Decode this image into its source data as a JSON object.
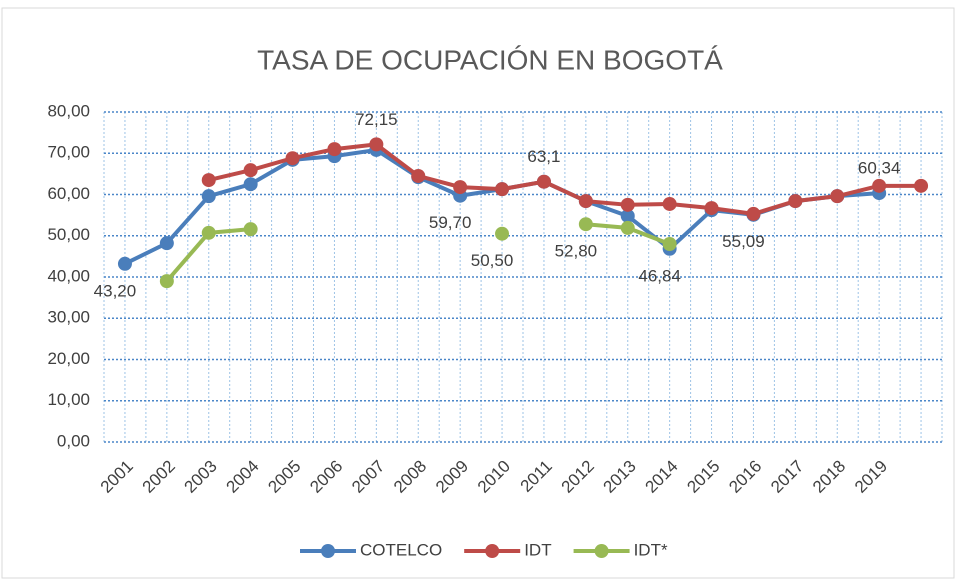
{
  "chart_data": {
    "type": "line",
    "title": "TASA DE OCUPACIÓN EN BOGOTÁ",
    "categories": [
      "2001",
      "2002",
      "2003",
      "2004",
      "2005",
      "2006",
      "2007",
      "2008",
      "2009",
      "2010",
      "2011",
      "2012",
      "2013",
      "2014",
      "2015",
      "2016",
      "2017",
      "2018",
      "2019",
      null
    ],
    "series": [
      {
        "name": "COTELCO",
        "color": "#4a7ebb",
        "values": [
          43.2,
          48.2,
          59.6,
          62.5,
          68.4,
          69.3,
          70.8,
          64.2,
          59.7,
          61.3,
          63.1,
          58.4,
          54.8,
          46.84,
          56.2,
          55.09,
          58.4,
          59.6,
          60.34,
          null
        ],
        "value_labels": [
          "43,20",
          null,
          null,
          null,
          null,
          null,
          null,
          null,
          "59,70",
          null,
          null,
          null,
          null,
          "46,84",
          null,
          "55,09",
          null,
          null,
          "60,34",
          null
        ]
      },
      {
        "name": "IDT",
        "color": "#be4b48",
        "values": [
          null,
          null,
          63.5,
          65.9,
          68.8,
          71.0,
          72.15,
          64.5,
          61.8,
          61.3,
          63.1,
          58.4,
          57.5,
          57.7,
          56.7,
          55.3,
          58.4,
          59.6,
          62.1,
          62.1
        ],
        "value_labels": [
          null,
          null,
          null,
          null,
          null,
          null,
          "72,15",
          null,
          null,
          null,
          "63,1",
          null,
          null,
          null,
          null,
          null,
          null,
          null,
          null,
          null
        ]
      },
      {
        "name": "IDT*",
        "color": "#98b954",
        "values": [
          null,
          39.0,
          50.7,
          51.6,
          null,
          null,
          null,
          null,
          null,
          50.5,
          null,
          52.8,
          51.9,
          48.0,
          null,
          null,
          null,
          null,
          null,
          null
        ],
        "value_labels": [
          null,
          null,
          null,
          null,
          null,
          null,
          null,
          null,
          null,
          "50,50",
          null,
          "52,80",
          null,
          null,
          null,
          null,
          null,
          null,
          null,
          null
        ]
      }
    ],
    "ylim": [
      0,
      80
    ],
    "yticks": [
      {
        "value": 0,
        "label": "0,00"
      },
      {
        "value": 10,
        "label": "10,00"
      },
      {
        "value": 20,
        "label": "20,00"
      },
      {
        "value": 30,
        "label": "30,00"
      },
      {
        "value": 40,
        "label": "40,00"
      },
      {
        "value": 50,
        "label": "50,00"
      },
      {
        "value": 60,
        "label": "60,00"
      },
      {
        "value": 70,
        "label": "70,00"
      },
      {
        "value": 80,
        "label": "80,00"
      }
    ],
    "grid": true,
    "legend": "bottom"
  }
}
